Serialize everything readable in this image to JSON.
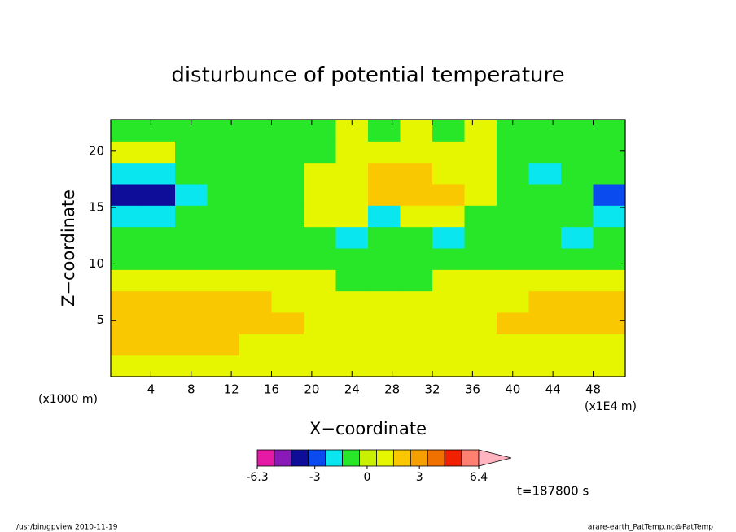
{
  "chart_data": {
    "type": "contour",
    "title": "disturbunce of potential temperature",
    "x_label": "X−coordinate",
    "y_label": "Z−coordinate",
    "x_unit": "(x1E4 m)",
    "y_unit": "(x1000 m)",
    "time_label": "t=187800 s",
    "footer_left": "/usr/bin/gpview   2010-11-19",
    "footer_right": "arare-earth_PatTemp.nc@PatTemp",
    "xlim": [
      0,
      51.2
    ],
    "ylim": [
      0,
      22.8
    ],
    "xticks": [
      4,
      8,
      12,
      16,
      20,
      24,
      28,
      32,
      36,
      40,
      44,
      48
    ],
    "yticks": [
      5,
      10,
      15,
      20
    ],
    "x": [
      1.6,
      4.8,
      8,
      11.2,
      14.4,
      17.6,
      20.8,
      24,
      27.2,
      30.4,
      33.6,
      36.8,
      40,
      43.2,
      46.4,
      49.6
    ],
    "y": [
      0.95,
      2.85,
      4.75,
      6.65,
      8.55,
      10.45,
      12.35,
      14.25,
      16.15,
      18.05,
      19.95,
      21.85
    ],
    "values": [
      [
        0.8,
        0.8,
        0.8,
        0.8,
        0.8,
        0.8,
        0.8,
        0.8,
        0.8,
        0.8,
        0.8,
        0.8,
        0.8,
        0.8,
        0.8,
        0.8
      ],
      [
        1.8,
        1.8,
        1.8,
        1.8,
        0.8,
        0.8,
        0.8,
        0.8,
        0.8,
        0.8,
        0.8,
        0.8,
        0.8,
        0.8,
        0.8,
        0.8
      ],
      [
        1.8,
        1.8,
        1.8,
        1.8,
        1.8,
        1.8,
        0.8,
        0.8,
        0.8,
        0.8,
        0.8,
        0.8,
        1.8,
        1.8,
        1.8,
        1.8
      ],
      [
        1.8,
        1.8,
        1.8,
        1.8,
        1.8,
        0.8,
        0.8,
        0.8,
        0.8,
        0.8,
        0.8,
        0.8,
        0.8,
        1.8,
        1.8,
        1.8
      ],
      [
        0.8,
        0.8,
        0.8,
        0.8,
        0.8,
        0.8,
        0.8,
        -0.5,
        -0.5,
        -0.5,
        0.8,
        0.8,
        0.8,
        0.8,
        0.8,
        0.8
      ],
      [
        -0.5,
        -0.5,
        -0.5,
        -0.5,
        -0.5,
        -0.5,
        -0.5,
        -0.5,
        -0.5,
        -0.5,
        -0.5,
        -0.5,
        -0.5,
        -0.5,
        -0.5,
        -0.5
      ],
      [
        -0.5,
        -0.5,
        -0.5,
        -0.5,
        -0.5,
        -0.5,
        -0.5,
        -2,
        -0.5,
        -0.5,
        -2,
        -0.5,
        -0.5,
        -0.5,
        -2,
        -0.5
      ],
      [
        -2,
        -2,
        -0.5,
        -0.5,
        -0.5,
        -0.5,
        0.8,
        0.8,
        -2,
        0.8,
        0.8,
        -0.5,
        -0.5,
        -0.5,
        -0.5,
        -2
      ],
      [
        -4,
        -4,
        -2,
        -0.5,
        -0.5,
        -0.5,
        0.8,
        0.8,
        1.8,
        1.8,
        1.8,
        0.8,
        -0.5,
        -0.5,
        -0.5,
        -3
      ],
      [
        -2,
        -2,
        -0.5,
        -0.5,
        -0.5,
        -0.5,
        0.8,
        0.8,
        1.8,
        1.8,
        0.8,
        0.8,
        -0.5,
        -2,
        -0.5,
        -0.5
      ],
      [
        0.8,
        0.8,
        -0.5,
        -0.5,
        -0.5,
        -0.5,
        -0.5,
        0.8,
        0.8,
        0.8,
        0.8,
        0.8,
        -0.5,
        -0.5,
        -0.5,
        -0.5
      ],
      [
        -0.5,
        -0.5,
        -0.5,
        -0.5,
        -0.5,
        -0.5,
        -0.5,
        0.8,
        -0.5,
        0.8,
        -0.5,
        0.8,
        -0.5,
        -0.5,
        -0.5,
        -0.5
      ]
    ],
    "colorbar": {
      "range": [
        -6.3,
        6.4
      ],
      "ticks": [
        -6.3,
        -3,
        0,
        3,
        6.4
      ],
      "colors": [
        "#e619a6",
        "#8a1ab8",
        "#0d0d9a",
        "#0a4bf0",
        "#0ae6f0",
        "#28e628",
        "#c8f000",
        "#e6f500",
        "#fac800",
        "#f5a000",
        "#f07000",
        "#f02000",
        "#ff8070"
      ],
      "extend_color": "#ffb4c0"
    }
  }
}
